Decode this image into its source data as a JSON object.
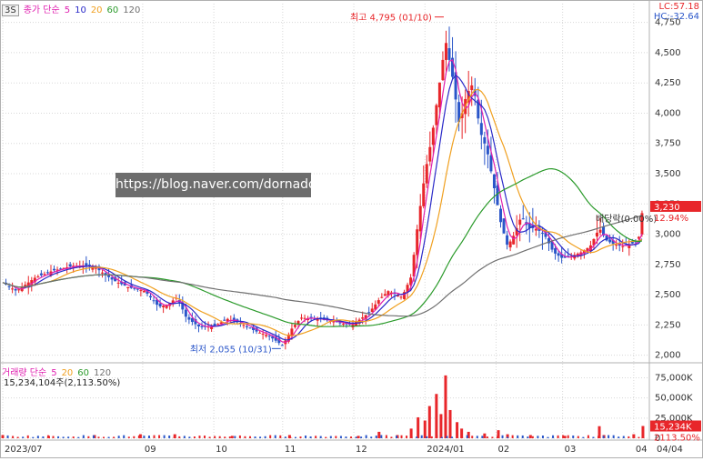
{
  "header": {
    "timeframe": "3S",
    "price_legend": {
      "label": "종가 단순",
      "periods": [
        "5",
        "10",
        "20",
        "60",
        "120"
      ]
    },
    "volume_legend": {
      "label": "거래량 단순",
      "periods": [
        "5",
        "20",
        "60",
        "120"
      ]
    },
    "readout_lc": "LC:57.18",
    "readout_hc": "HC:-32.64"
  },
  "watermark": "https://blog.naver.com/dornado",
  "colors": {
    "up": "#e8262a",
    "down": "#2a56c9",
    "ma5": "#e020b0",
    "ma10": "#2a2ac8",
    "ma20": "#f0a020",
    "ma60": "#2a9a2a",
    "ma120": "#707070",
    "grid": "#d8d8d8",
    "price_tag": "#e8262a"
  },
  "chart_data": [
    {
      "type": "candlestick",
      "series_name": "종가",
      "y_ticks": [
        2000,
        2250,
        2500,
        2750,
        3000,
        3250,
        3500,
        3750,
        4000,
        4250,
        4500,
        4750
      ],
      "y_tick_labels": [
        "2,000",
        "2,250",
        "2,500",
        "2,750",
        "3,000",
        "3,250",
        "3,500",
        "3,750",
        "4,000",
        "4,250",
        "4,500",
        "4,750"
      ],
      "ylim": [
        1960,
        4830
      ],
      "x_labels": [
        "2023/07",
        "09",
        "10",
        "11",
        "12",
        "2024/01",
        "02",
        "03",
        "04",
        "04/04"
      ],
      "x_label_days": [
        0,
        61,
        92,
        122,
        153,
        184,
        215,
        244,
        275,
        279
      ],
      "annotations": [
        {
          "text": "최고 4,795 (01/10)",
          "day": 193,
          "value": 4795,
          "kind": "high"
        },
        {
          "text": "최저 2,055 (10/31)",
          "day": 122,
          "value": 2055,
          "kind": "low"
        }
      ],
      "last_price_tag": "3,230",
      "last_change_tag": "12.94%",
      "label_inline": "배당락(0.00%)",
      "anchors": [
        [
          0,
          2600
        ],
        [
          6,
          2530
        ],
        [
          14,
          2640
        ],
        [
          22,
          2700
        ],
        [
          31,
          2740
        ],
        [
          40,
          2730
        ],
        [
          48,
          2620
        ],
        [
          55,
          2560
        ],
        [
          62,
          2530
        ],
        [
          68,
          2400
        ],
        [
          72,
          2420
        ],
        [
          76,
          2480
        ],
        [
          80,
          2310
        ],
        [
          86,
          2230
        ],
        [
          92,
          2240
        ],
        [
          98,
          2300
        ],
        [
          104,
          2260
        ],
        [
          110,
          2200
        ],
        [
          116,
          2160
        ],
        [
          122,
          2080
        ],
        [
          126,
          2220
        ],
        [
          130,
          2310
        ],
        [
          137,
          2300
        ],
        [
          144,
          2280
        ],
        [
          151,
          2250
        ],
        [
          156,
          2300
        ],
        [
          160,
          2360
        ],
        [
          164,
          2460
        ],
        [
          168,
          2530
        ],
        [
          174,
          2480
        ],
        [
          178,
          2650
        ],
        [
          181,
          3100
        ],
        [
          184,
          3500
        ],
        [
          187,
          3800
        ],
        [
          190,
          4200
        ],
        [
          193,
          4600
        ],
        [
          196,
          4300
        ],
        [
          199,
          3900
        ],
        [
          202,
          4150
        ],
        [
          205,
          4250
        ],
        [
          208,
          3850
        ],
        [
          211,
          3700
        ],
        [
          214,
          3400
        ],
        [
          217,
          3100
        ],
        [
          220,
          2900
        ],
        [
          223,
          3000
        ],
        [
          226,
          3150
        ],
        [
          229,
          3050
        ],
        [
          232,
          3050
        ],
        [
          236,
          3000
        ],
        [
          240,
          2850
        ],
        [
          244,
          2800
        ],
        [
          248,
          2820
        ],
        [
          252,
          2850
        ],
        [
          256,
          2900
        ],
        [
          260,
          3050
        ],
        [
          263,
          2950
        ],
        [
          266,
          2920
        ],
        [
          270,
          2900
        ],
        [
          274,
          2920
        ],
        [
          277,
          2950
        ],
        [
          279,
          3230
        ]
      ]
    },
    {
      "type": "bar",
      "series_name": "거래량",
      "y_ticks": [
        0,
        25000,
        50000,
        75000
      ],
      "y_tick_labels": [
        "0",
        "25,000K",
        "50,000K",
        "75,000K"
      ],
      "ylim": [
        0,
        88000
      ],
      "last_value_tag": "15,234K",
      "last_ratio_tag": "2113.50%",
      "readout": "15,234,104주(2,113.50%)",
      "spikes": [
        [
          0,
          4000
        ],
        [
          20,
          3000
        ],
        [
          40,
          4000
        ],
        [
          60,
          5000
        ],
        [
          75,
          5000
        ],
        [
          100,
          3000
        ],
        [
          125,
          4000
        ],
        [
          155,
          3000
        ],
        [
          164,
          8000
        ],
        [
          172,
          4000
        ],
        [
          178,
          12000
        ],
        [
          181,
          26000
        ],
        [
          184,
          22000
        ],
        [
          186,
          40000
        ],
        [
          189,
          55000
        ],
        [
          191,
          30000
        ],
        [
          193,
          78000
        ],
        [
          195,
          35000
        ],
        [
          198,
          20000
        ],
        [
          200,
          12000
        ],
        [
          203,
          8000
        ],
        [
          210,
          6000
        ],
        [
          216,
          10000
        ],
        [
          220,
          5000
        ],
        [
          230,
          4000
        ],
        [
          245,
          3000
        ],
        [
          260,
          15000
        ],
        [
          262,
          4000
        ],
        [
          275,
          5000
        ],
        [
          279,
          15234
        ]
      ]
    }
  ]
}
